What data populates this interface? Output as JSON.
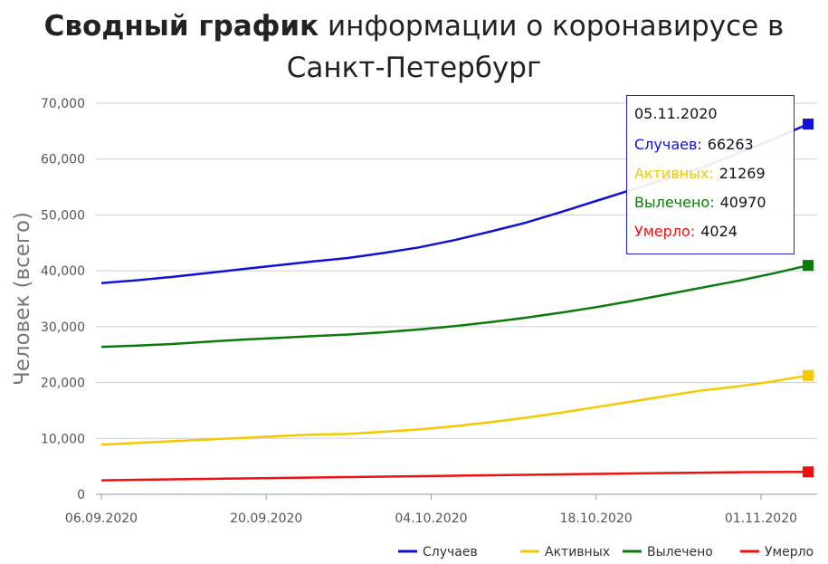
{
  "title": {
    "bold": "Сводный график",
    "rest": " информации о коронавирусе в",
    "line2": "Санкт-Петербург"
  },
  "chart_data": {
    "type": "line",
    "title": "Сводный график информации о коронавирусе в Санкт-Петербург",
    "ylabel": "Человек (всего)",
    "xlabel": "",
    "x_start": "06.09.2020",
    "x_end": "05.11.2020",
    "x_ticks": [
      "06.09.2020",
      "20.09.2020",
      "04.10.2020",
      "18.10.2020",
      "01.11.2020"
    ],
    "y_ticks": [
      "0",
      "10,000",
      "20,000",
      "30,000",
      "40,000",
      "50,000",
      "60,000",
      "70,000"
    ],
    "ylim": [
      0,
      70000
    ],
    "grid": true,
    "legend_position": "bottom-right",
    "x": [
      "06.09.2020",
      "09.09.2020",
      "12.09.2020",
      "15.09.2020",
      "18.09.2020",
      "21.09.2020",
      "24.09.2020",
      "27.09.2020",
      "30.09.2020",
      "03.10.2020",
      "06.10.2020",
      "09.10.2020",
      "12.10.2020",
      "15.10.2020",
      "18.10.2020",
      "21.10.2020",
      "24.10.2020",
      "27.10.2020",
      "30.10.2020",
      "02.11.2020",
      "05.11.2020"
    ],
    "series": [
      {
        "name": "Случаев",
        "color": "#1010d8",
        "values": [
          37800,
          38300,
          38900,
          39600,
          40300,
          41000,
          41700,
          42300,
          43200,
          44200,
          45500,
          47000,
          48600,
          50500,
          52500,
          54500,
          56500,
          58500,
          61000,
          63500,
          66263
        ]
      },
      {
        "name": "Активных",
        "color": "#f5c800",
        "values": [
          8900,
          9200,
          9500,
          9800,
          10100,
          10400,
          10700,
          10800,
          11200,
          11600,
          12200,
          12900,
          13700,
          14600,
          15600,
          16600,
          17600,
          18600,
          19300,
          20200,
          21269
        ]
      },
      {
        "name": "Вылечено",
        "color": "#0a7a0a",
        "values": [
          26400,
          26600,
          26900,
          27300,
          27700,
          28000,
          28300,
          28600,
          29000,
          29500,
          30100,
          30800,
          31600,
          32500,
          33500,
          34600,
          35800,
          37000,
          38200,
          39500,
          40970
        ]
      },
      {
        "name": "Умерло",
        "color": "#ee1111",
        "values": [
          2500,
          2590,
          2680,
          2760,
          2840,
          2920,
          3000,
          3080,
          3160,
          3240,
          3320,
          3400,
          3480,
          3560,
          3640,
          3720,
          3800,
          3880,
          3950,
          3990,
          4024
        ]
      }
    ]
  },
  "tooltip": {
    "date": "05.11.2020",
    "rows": [
      {
        "label": "Случаев:",
        "value": "66263"
      },
      {
        "label": "Активных:",
        "value": "21269"
      },
      {
        "label": "Вылечено:",
        "value": "40970"
      },
      {
        "label": "Умерло:",
        "value": "4024"
      }
    ]
  }
}
